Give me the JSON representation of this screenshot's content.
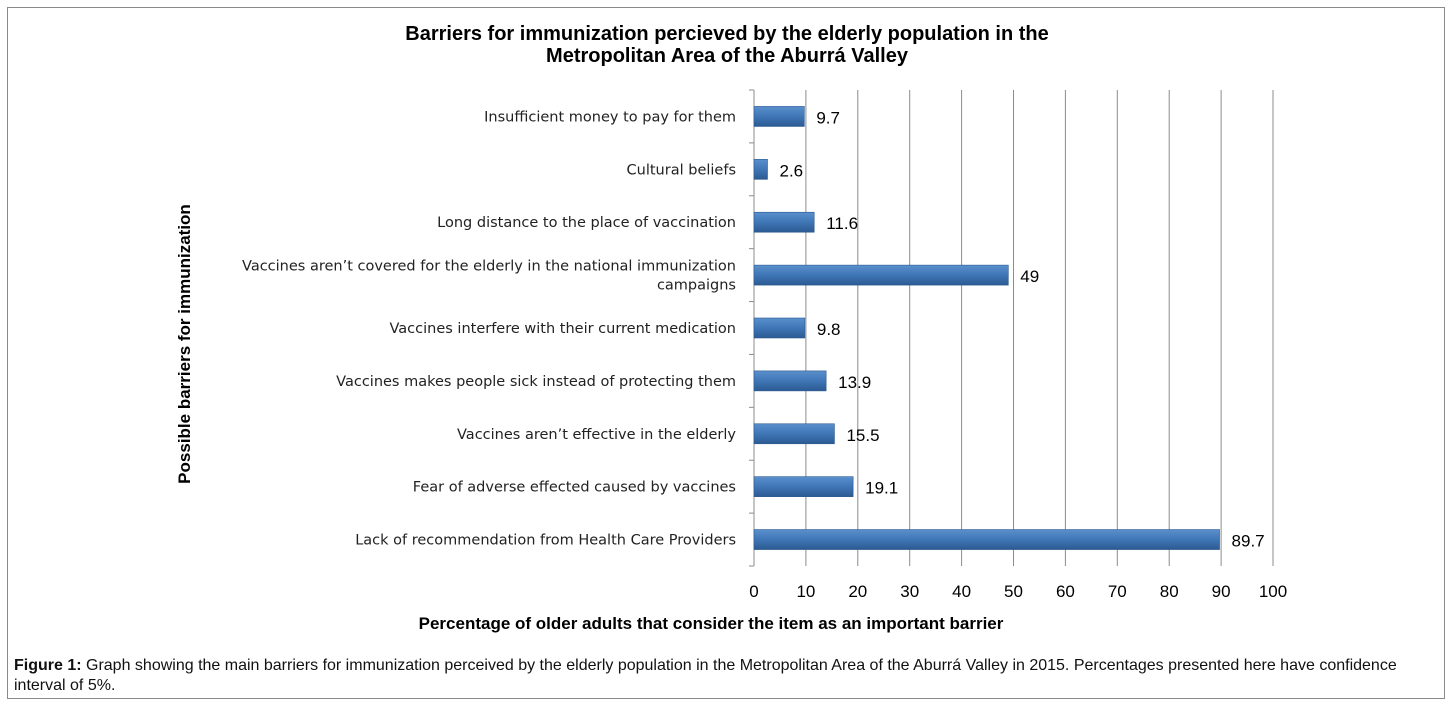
{
  "chart_data": {
    "type": "bar",
    "orientation": "horizontal",
    "title": [
      "Barriers for immunization percieved by the elderly population in the",
      "Metropolitan Area of the Aburrá Valley"
    ],
    "xlabel": "Percentage of older adults that consider the item as an important barrier",
    "ylabel": "Possible barriers for immunization",
    "xlim": [
      0,
      100
    ],
    "xticks": [
      0,
      10,
      20,
      30,
      40,
      50,
      60,
      70,
      80,
      90,
      100
    ],
    "grid": true,
    "bar_color": "#3f76b6",
    "categories": [
      {
        "label": [
          "Insufficient money to pay for them"
        ],
        "value": 9.7
      },
      {
        "label": [
          "Cultural beliefs"
        ],
        "value": 2.6
      },
      {
        "label": [
          "Long distance to the place of vaccination"
        ],
        "value": 11.6
      },
      {
        "label": [
          "Vaccines aren’t covered for the elderly in the national immunization",
          "campaigns"
        ],
        "value": 49
      },
      {
        "label": [
          "Vaccines interfere with their current medication"
        ],
        "value": 9.8
      },
      {
        "label": [
          "Vaccines makes people sick instead of protecting them"
        ],
        "value": 13.9
      },
      {
        "label": [
          "Vaccines aren’t effective in the elderly"
        ],
        "value": 15.5
      },
      {
        "label": [
          "Fear of adverse effected caused by vaccines"
        ],
        "value": 19.1
      },
      {
        "label": [
          "Lack of recommendation from Health Care Providers"
        ],
        "value": 89.7
      }
    ]
  },
  "caption": {
    "label": "Figure 1:",
    "text": " Graph showing the main barriers for immunization perceived by the elderly population in the Metropolitan Area of the Aburrá Valley in 2015. Percentages presented here have confidence interval of 5%."
  }
}
